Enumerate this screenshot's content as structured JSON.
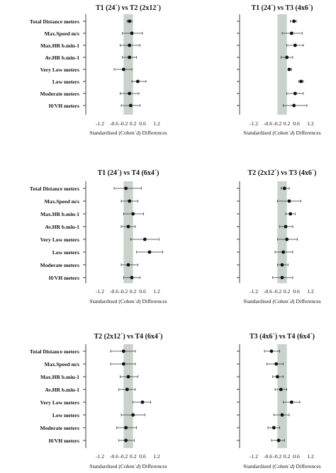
{
  "figure": {
    "background_color": "#ffffff",
    "band_color": "#c9d3cc",
    "ink_color": "#111111"
  },
  "chart_data": [
    {
      "type": "forest",
      "title": "T1 (24´) vs T2 (2x12´)",
      "xlabel": "Standardised (Cohen´s d) Differences",
      "xlim": [
        -1.8,
        1.8
      ],
      "xticks": [
        "-1.2",
        "-0.6",
        "-0.2",
        "0.2",
        "0.6",
        "1.2"
      ],
      "tick_values": [
        -1.2,
        -0.6,
        -0.2,
        0.2,
        0.6,
        1.2
      ],
      "trivial_band": [
        -0.2,
        0.2
      ],
      "categories": [
        "Total Distance meters",
        "Max.Speed m/s",
        "Max.HR b.min-1",
        "Av.HR b.min-1",
        "Very Low meters",
        "Low meters",
        "Moderate meters",
        "H/VH meters"
      ],
      "estimates": [
        0.05,
        0.15,
        0.05,
        0.05,
        -0.2,
        0.4,
        0.05,
        0.1
      ],
      "ci_lower": [
        -0.05,
        -0.25,
        -0.35,
        -0.25,
        -0.6,
        0.15,
        -0.35,
        -0.3
      ],
      "ci_upper": [
        0.15,
        0.6,
        0.5,
        0.35,
        0.15,
        0.75,
        0.45,
        0.5
      ]
    },
    {
      "type": "forest",
      "title": "T1 (24´) vs T3 (4x6´)",
      "xlabel": "Standardised (Cohen´s d) Differences",
      "xlim": [
        -1.8,
        1.8
      ],
      "xticks": [
        "-1.2",
        "-0.6",
        "-0.2",
        "0.2",
        "0.6",
        "1.2"
      ],
      "tick_values": [
        -1.2,
        -0.6,
        -0.2,
        0.2,
        0.6,
        1.2
      ],
      "trivial_band": [
        -0.2,
        0.2
      ],
      "categories": [
        "",
        "",
        "",
        "",
        "",
        "",
        "",
        ""
      ],
      "estimates": [
        0.5,
        0.4,
        0.55,
        0.2,
        0.3,
        0.8,
        0.55,
        0.5
      ],
      "ci_lower": [
        0.35,
        0.0,
        0.2,
        -0.05,
        0.3,
        0.7,
        0.2,
        0.05
      ],
      "ci_upper": [
        0.6,
        0.85,
        0.9,
        0.45,
        0.4,
        0.9,
        0.9,
        1.05
      ]
    },
    {
      "type": "forest",
      "title": "T1 (24´) vs T4 (6x4´)",
      "xlabel": "Standardised (Cohen´s d) Differences",
      "xlim": [
        -1.8,
        1.8
      ],
      "xticks": [
        "-1.2",
        "-0.6",
        "-0.2",
        "0.2",
        "0.6",
        "1.2"
      ],
      "tick_values": [
        -1.2,
        -0.6,
        -0.2,
        0.2,
        0.6,
        1.2
      ],
      "trivial_band": [
        -0.2,
        0.2
      ],
      "categories": [
        "Total Distance meters",
        "Max.Speed m/s",
        "Max.HR b.min-1",
        "Av.HR b.min-1",
        "Very Low meters",
        "Low meters",
        "Moderate meters",
        "H/VH meters"
      ],
      "estimates": [
        -0.1,
        0.05,
        0.2,
        0.0,
        0.7,
        0.9,
        0.0,
        0.15
      ],
      "ci_lower": [
        -0.6,
        -0.3,
        -0.2,
        -0.3,
        0.1,
        0.35,
        -0.3,
        -0.2
      ],
      "ci_upper": [
        0.55,
        0.4,
        0.65,
        0.3,
        1.3,
        1.45,
        0.4,
        0.5
      ]
    },
    {
      "type": "forest",
      "title": "T2 (2x12´) vs T3 (4x6´)",
      "xlabel": "Standardised (Cohen´s d) Differences",
      "xlim": [
        -1.8,
        1.8
      ],
      "xticks": [
        "-1.2",
        "-0.6",
        "-0.2",
        "0.2",
        "0.6",
        "1.2"
      ],
      "tick_values": [
        -1.2,
        -0.6,
        -0.2,
        0.2,
        0.6,
        1.2
      ],
      "trivial_band": [
        -0.2,
        0.2
      ],
      "categories": [
        "",
        "",
        "",
        "",
        "",
        "",
        "",
        ""
      ],
      "estimates": [
        0.1,
        0.3,
        0.35,
        0.15,
        0.2,
        0.05,
        0.0,
        0.0
      ],
      "ci_lower": [
        -0.05,
        -0.2,
        0.15,
        -0.1,
        -0.2,
        -0.3,
        -0.2,
        -0.4
      ],
      "ci_upper": [
        0.3,
        0.8,
        0.55,
        0.45,
        0.65,
        0.45,
        0.25,
        0.45
      ]
    },
    {
      "type": "forest",
      "title": "T2 (2x12´) vs T4 (6x4´)",
      "xlabel": "Standardised (Cohen´s d) Differences",
      "xlim": [
        -1.8,
        1.8
      ],
      "xticks": [
        "-1.2",
        "-0.6",
        "-0.2",
        "0.2",
        "0.6",
        "1.2"
      ],
      "tick_values": [
        -1.2,
        -0.6,
        -0.2,
        0.2,
        0.6,
        1.2
      ],
      "trivial_band": [
        -0.2,
        0.2
      ],
      "categories": [
        "Total Distance meters",
        "Max.Speed m/s",
        "Max.HR b.min-1",
        "Av.HR b.min-1",
        "Very Low meters",
        "Low meters",
        "Moderate meters",
        "H/VH meters"
      ],
      "estimates": [
        -0.2,
        -0.2,
        0.0,
        -0.05,
        0.6,
        0.2,
        -0.1,
        -0.1
      ],
      "ci_lower": [
        -0.75,
        -0.75,
        -0.35,
        -0.4,
        0.2,
        -0.3,
        -0.5,
        -0.4
      ],
      "ci_upper": [
        0.3,
        0.3,
        0.4,
        0.3,
        0.95,
        0.7,
        0.35,
        0.25
      ]
    },
    {
      "type": "forest",
      "title": "T3 (4x6´) vs T4 (6x4´)",
      "xlabel": "Standardised (Cohen´s d) Differences",
      "xlim": [
        -1.8,
        1.8
      ],
      "xticks": [
        "-1.2",
        "-0.6",
        "-0.2",
        "0.2",
        "0.6",
        "1.2"
      ],
      "tick_values": [
        -1.2,
        -0.6,
        -0.2,
        0.2,
        0.6,
        1.2
      ],
      "trivial_band": [
        -0.2,
        0.2
      ],
      "categories": [
        "",
        "",
        "",
        "",
        "",
        "",
        "",
        ""
      ],
      "estimates": [
        -0.45,
        -0.25,
        -0.2,
        -0.05,
        0.4,
        0.0,
        -0.35,
        -0.15
      ],
      "ci_lower": [
        -0.75,
        -0.65,
        -0.4,
        -0.3,
        0.05,
        -0.35,
        -0.6,
        -0.45
      ],
      "ci_upper": [
        -0.1,
        0.05,
        0.05,
        0.2,
        0.75,
        0.3,
        -0.1,
        0.1
      ]
    }
  ]
}
